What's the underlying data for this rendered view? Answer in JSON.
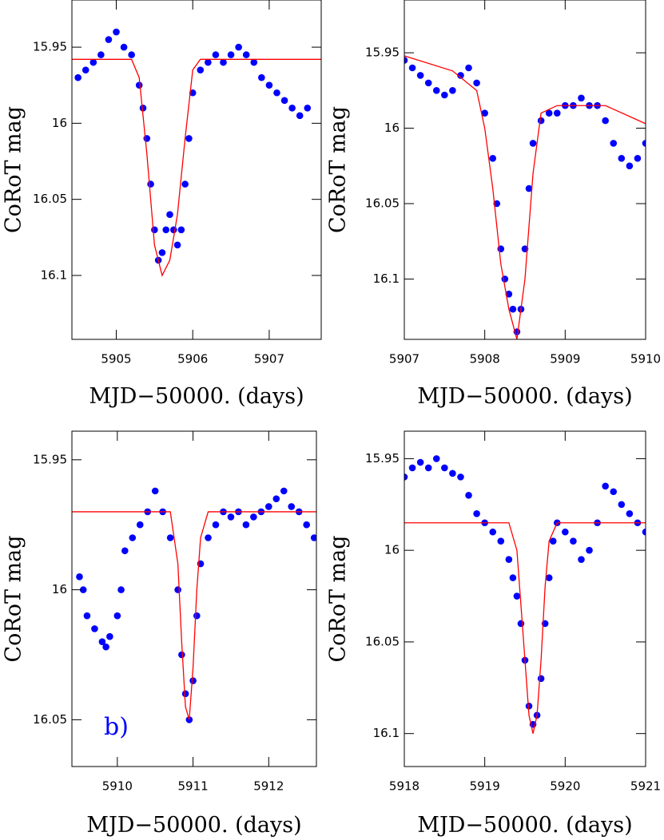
{
  "chart_data": [
    {
      "type": "scatter",
      "xlabel": "MJD−50000. (days)",
      "ylabel": "CoRoT mag",
      "y_inverted": true,
      "xlim": [
        5904.42,
        5907.68
      ],
      "ylim": [
        15.919,
        16.142
      ],
      "xticks": [
        5905,
        5906,
        5907
      ],
      "yticks": [
        15.95,
        16,
        16.05,
        16.1
      ],
      "series": [
        {
          "marker": "dot",
          "color": "#0000ff",
          "x": [
            5904.5,
            5904.6,
            5904.7,
            5904.8,
            5904.9,
            5905.0,
            5905.1,
            5905.2,
            5905.3,
            5905.35,
            5905.4,
            5905.45,
            5905.5,
            5905.55,
            5905.6,
            5905.65,
            5905.7,
            5905.75,
            5905.8,
            5905.85,
            5905.9,
            5905.95,
            5906.0,
            5906.1,
            5906.2,
            5906.3,
            5906.4,
            5906.5,
            5906.6,
            5906.7,
            5906.8,
            5906.9,
            5907.0,
            5907.1,
            5907.2,
            5907.3,
            5907.4,
            5907.5
          ],
          "values": [
            15.97,
            15.965,
            15.96,
            15.955,
            15.945,
            15.94,
            15.95,
            15.955,
            15.975,
            15.99,
            16.01,
            16.04,
            16.07,
            16.09,
            16.085,
            16.07,
            16.06,
            16.07,
            16.08,
            16.07,
            16.04,
            16.01,
            15.98,
            15.965,
            15.96,
            15.955,
            15.96,
            15.955,
            15.95,
            15.955,
            15.96,
            15.97,
            15.975,
            15.98,
            15.985,
            15.99,
            15.995,
            15.99
          ]
        },
        {
          "marker": "line",
          "color": "#ff0000",
          "x": [
            5904.42,
            5905.2,
            5905.3,
            5905.4,
            5905.5,
            5905.6,
            5905.7,
            5905.8,
            5905.9,
            5906.0,
            5906.1,
            5907.68
          ],
          "values": [
            15.958,
            15.958,
            15.97,
            16.02,
            16.08,
            16.1,
            16.09,
            16.06,
            16.01,
            15.965,
            15.958,
            15.958
          ]
        }
      ]
    },
    {
      "type": "scatter",
      "xlabel": "MJD−50000. (days)",
      "ylabel": "CoRoT mag",
      "y_inverted": true,
      "xlim": [
        5907,
        5910
      ],
      "ylim": [
        15.915,
        16.14
      ],
      "xticks": [
        5907,
        5908,
        5909,
        5910
      ],
      "yticks": [
        15.95,
        16,
        16.05,
        16.1
      ],
      "series": [
        {
          "marker": "dot",
          "color": "#0000ff",
          "x": [
            5907.0,
            5907.1,
            5907.2,
            5907.3,
            5907.4,
            5907.5,
            5907.6,
            5907.7,
            5907.8,
            5907.9,
            5908.0,
            5908.1,
            5908.15,
            5908.2,
            5908.25,
            5908.3,
            5908.35,
            5908.4,
            5908.45,
            5908.5,
            5908.55,
            5908.6,
            5908.7,
            5908.8,
            5908.9,
            5909.0,
            5909.1,
            5909.2,
            5909.3,
            5909.4,
            5909.5,
            5909.6,
            5909.7,
            5909.8,
            5909.9,
            5910.0
          ],
          "values": [
            15.955,
            15.96,
            15.965,
            15.97,
            15.975,
            15.978,
            15.975,
            15.965,
            15.96,
            15.97,
            15.99,
            16.02,
            16.05,
            16.08,
            16.1,
            16.11,
            16.12,
            16.135,
            16.12,
            16.08,
            16.04,
            16.01,
            15.995,
            15.99,
            15.99,
            15.985,
            15.985,
            15.98,
            15.985,
            15.985,
            15.995,
            16.01,
            16.02,
            16.025,
            16.02,
            16.01
          ]
        },
        {
          "marker": "line",
          "color": "#ff0000",
          "x": [
            5907,
            5907.6,
            5907.9,
            5908.0,
            5908.1,
            5908.2,
            5908.3,
            5908.4,
            5908.5,
            5908.6,
            5908.7,
            5908.9,
            5909.5,
            5910
          ],
          "values": [
            15.952,
            15.962,
            15.975,
            16.0,
            16.04,
            16.09,
            16.12,
            16.14,
            16.1,
            16.03,
            15.99,
            15.985,
            15.985,
            15.997
          ]
        }
      ]
    },
    {
      "type": "scatter",
      "xlabel": "MJD−50000. (days)",
      "ylabel": "CoRoT mag",
      "y_inverted": true,
      "annotation": {
        "text": "b)",
        "color": "#0000ff"
      },
      "xlim": [
        5909.4,
        5912.63
      ],
      "ylim": [
        15.939,
        16.068
      ],
      "xticks": [
        5910,
        5911,
        5912
      ],
      "yticks": [
        15.95,
        16,
        16.05
      ],
      "series": [
        {
          "marker": "dot",
          "color": "#0000ff",
          "x": [
            5909.5,
            5909.55,
            5909.6,
            5909.7,
            5909.8,
            5909.85,
            5909.9,
            5910.0,
            5910.05,
            5910.1,
            5910.2,
            5910.3,
            5910.4,
            5910.5,
            5910.6,
            5910.7,
            5910.8,
            5910.85,
            5910.9,
            5910.95,
            5911.0,
            5911.05,
            5911.1,
            5911.2,
            5911.3,
            5911.4,
            5911.5,
            5911.6,
            5911.7,
            5911.8,
            5911.9,
            5912.0,
            5912.1,
            5912.2,
            5912.3,
            5912.4,
            5912.5,
            5912.6
          ],
          "values": [
            15.995,
            16.0,
            16.01,
            16.015,
            16.02,
            16.022,
            16.018,
            16.01,
            16.0,
            15.985,
            15.98,
            15.975,
            15.97,
            15.962,
            15.97,
            15.98,
            16.0,
            16.025,
            16.04,
            16.05,
            16.035,
            16.01,
            15.99,
            15.98,
            15.975,
            15.97,
            15.972,
            15.97,
            15.975,
            15.972,
            15.97,
            15.968,
            15.965,
            15.962,
            15.968,
            15.97,
            15.975,
            15.98
          ]
        },
        {
          "marker": "line",
          "color": "#ff0000",
          "x": [
            5909.4,
            5910.7,
            5910.8,
            5910.85,
            5910.9,
            5910.95,
            5911.0,
            5911.05,
            5911.1,
            5911.2,
            5912.63
          ],
          "values": [
            15.97,
            15.97,
            15.99,
            16.02,
            16.045,
            16.05,
            16.03,
            16.0,
            15.98,
            15.97,
            15.97
          ]
        }
      ]
    },
    {
      "type": "scatter",
      "xlabel": "MJD−50000. (days)",
      "ylabel": "CoRoT mag",
      "y_inverted": true,
      "xlim": [
        5918,
        5921
      ],
      "ylim": [
        15.935,
        16.118
      ],
      "xticks": [
        5918,
        5919,
        5920,
        5921
      ],
      "yticks": [
        15.95,
        16,
        16.05,
        16.1
      ],
      "series": [
        {
          "marker": "dot",
          "color": "#0000ff",
          "x": [
            5918.0,
            5918.1,
            5918.2,
            5918.3,
            5918.4,
            5918.5,
            5918.6,
            5918.7,
            5918.8,
            5918.9,
            5919.0,
            5919.1,
            5919.2,
            5919.3,
            5919.35,
            5919.4,
            5919.45,
            5919.5,
            5919.55,
            5919.6,
            5919.65,
            5919.7,
            5919.75,
            5919.8,
            5919.85,
            5919.9,
            5920.0,
            5920.1,
            5920.2,
            5920.3,
            5920.4,
            5920.5,
            5920.6,
            5920.7,
            5920.8,
            5920.9,
            5921.0
          ],
          "values": [
            15.96,
            15.955,
            15.952,
            15.955,
            15.95,
            15.955,
            15.958,
            15.96,
            15.97,
            15.98,
            15.985,
            15.99,
            15.995,
            16.005,
            16.015,
            16.025,
            16.04,
            16.06,
            16.085,
            16.095,
            16.09,
            16.07,
            16.04,
            16.015,
            15.995,
            15.985,
            15.99,
            15.995,
            16.005,
            16.0,
            15.985,
            15.965,
            15.968,
            15.975,
            15.98,
            15.985,
            15.99
          ]
        },
        {
          "marker": "line",
          "color": "#ff0000",
          "x": [
            5918,
            5919.3,
            5919.4,
            5919.45,
            5919.5,
            5919.55,
            5919.6,
            5919.65,
            5919.7,
            5919.75,
            5919.8,
            5919.9,
            5921
          ],
          "values": [
            15.985,
            15.985,
            16.0,
            16.03,
            16.06,
            16.09,
            16.1,
            16.09,
            16.06,
            16.02,
            15.995,
            15.985,
            15.985
          ]
        }
      ]
    }
  ]
}
